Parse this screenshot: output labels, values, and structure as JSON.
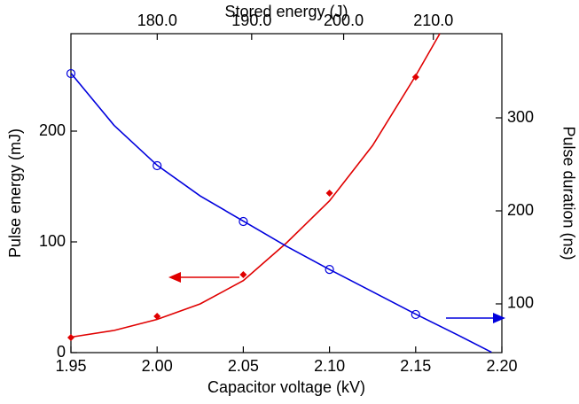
{
  "chart_data": {
    "type": "line",
    "xlabel": "Capacitor voltage (kV)",
    "ylabel": "Pulse energy (mJ)",
    "y2label": "Pulse duration (ns)",
    "x2label": "Stored energy (J)",
    "xlim": [
      1.95,
      2.2
    ],
    "xticks": [
      1.95,
      {
        "value": 2,
        "label": "2.00"
      },
      2.05,
      {
        "value": 2.1,
        "label": "2.10"
      },
      2.15,
      {
        "value": 2.2,
        "label": "2.20"
      }
    ],
    "ylim": [
      0,
      288
    ],
    "yticks": [
      0,
      100,
      200
    ],
    "y2lim": [
      47.6,
      390.5
    ],
    "y2ticks": [
      100,
      200,
      300
    ],
    "x2scale": "sqrt",
    "x2lim": [
      171.1,
      217.8
    ],
    "x2ticks": [
      {
        "value": 180,
        "label": "180.0"
      },
      {
        "value": 190,
        "label": "190.0"
      },
      {
        "value": 200,
        "label": "200.0"
      },
      {
        "value": 210,
        "label": "210.0"
      }
    ],
    "series": [
      {
        "color": "#e00000",
        "marker": "diamond",
        "x": [
          1.95,
          2.0,
          2.05,
          2.1,
          2.15
        ],
        "values": [
          13.6,
          32.8,
          70.4,
          144,
          248.8
        ]
      },
      {
        "color": "#e00000",
        "marker": "none",
        "x": [
          1.95,
          1.975,
          2.0,
          2.025,
          2.05,
          2.075,
          2.1,
          2.125,
          2.15,
          2.164
        ],
        "values": [
          14,
          20,
          30,
          44,
          65,
          99,
          137,
          187,
          250,
          288
        ]
      },
      {
        "color": "#0000dd",
        "marker": "circle",
        "axis": "y2",
        "x": [
          1.95,
          2.0,
          2.05,
          2.1,
          2.15
        ],
        "values": [
          347.6,
          248.6,
          188.6,
          137,
          88.6
        ]
      },
      {
        "color": "#0000dd",
        "marker": "none",
        "axis": "y2",
        "x": [
          1.95,
          1.975,
          2.0,
          2.025,
          2.05,
          2.075,
          2.1,
          2.125,
          2.15,
          2.175,
          2.194
        ],
        "values": [
          348,
          292,
          249,
          216,
          189,
          162,
          137,
          113,
          89,
          66,
          48
        ]
      }
    ]
  }
}
